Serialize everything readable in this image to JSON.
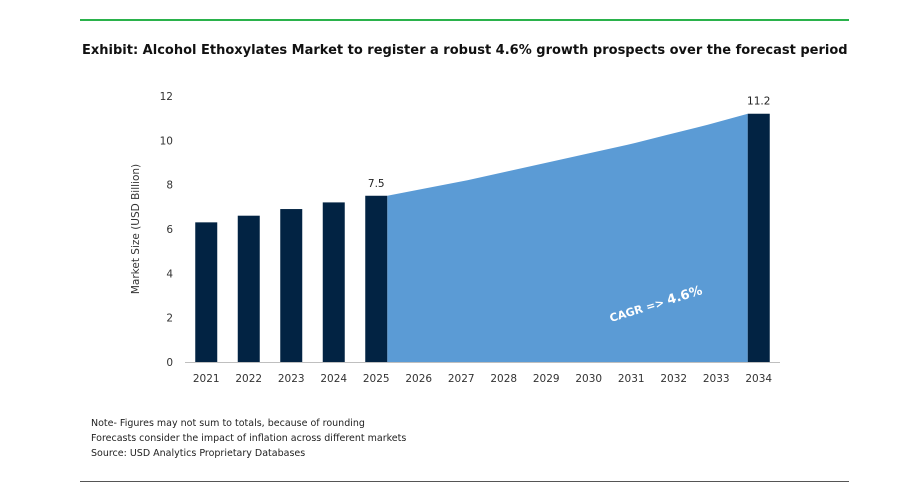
{
  "title": "Exhibit: Alcohol Ethoxylates Market to register a robust 4.6% growth prospects over the forecast period",
  "notes": [
    "Note- Figures may not sum to totals, because of rounding",
    "Forecasts consider the impact of inflation across different markets",
    "Source: USD Analytics Proprietary Databases"
  ],
  "colors": {
    "accent_rule": "#2ab24b",
    "bar": "#022343",
    "area": "#5b9bd5",
    "cagr_text": "#ffffff"
  },
  "chart_data": {
    "type": "bar",
    "categories": [
      "2021",
      "2022",
      "2023",
      "2024",
      "2025",
      "2026",
      "2027",
      "2028",
      "2029",
      "2030",
      "2031",
      "2032",
      "2033",
      "2034"
    ],
    "values": [
      6.3,
      6.6,
      6.9,
      7.2,
      7.5,
      null,
      null,
      null,
      null,
      null,
      null,
      null,
      null,
      11.2
    ],
    "forecast_area": {
      "start": "2025",
      "end": "2034",
      "values": [
        7.5,
        7.85,
        8.2,
        8.6,
        9.0,
        9.4,
        9.8,
        10.25,
        10.7,
        11.2
      ]
    },
    "data_labels": [
      {
        "category": "2025",
        "text": "7.5"
      },
      {
        "category": "2034",
        "text": "11.2"
      }
    ],
    "annotation": {
      "label": "CAGR =>",
      "value": "4.6%"
    },
    "ylabel": "Market Size (USD Billion)",
    "xlabel": "",
    "yticks": [
      "0",
      "2",
      "4",
      "6",
      "8",
      "10",
      "12"
    ],
    "ylim": [
      0,
      12
    ],
    "grid": false,
    "legend": "none"
  }
}
